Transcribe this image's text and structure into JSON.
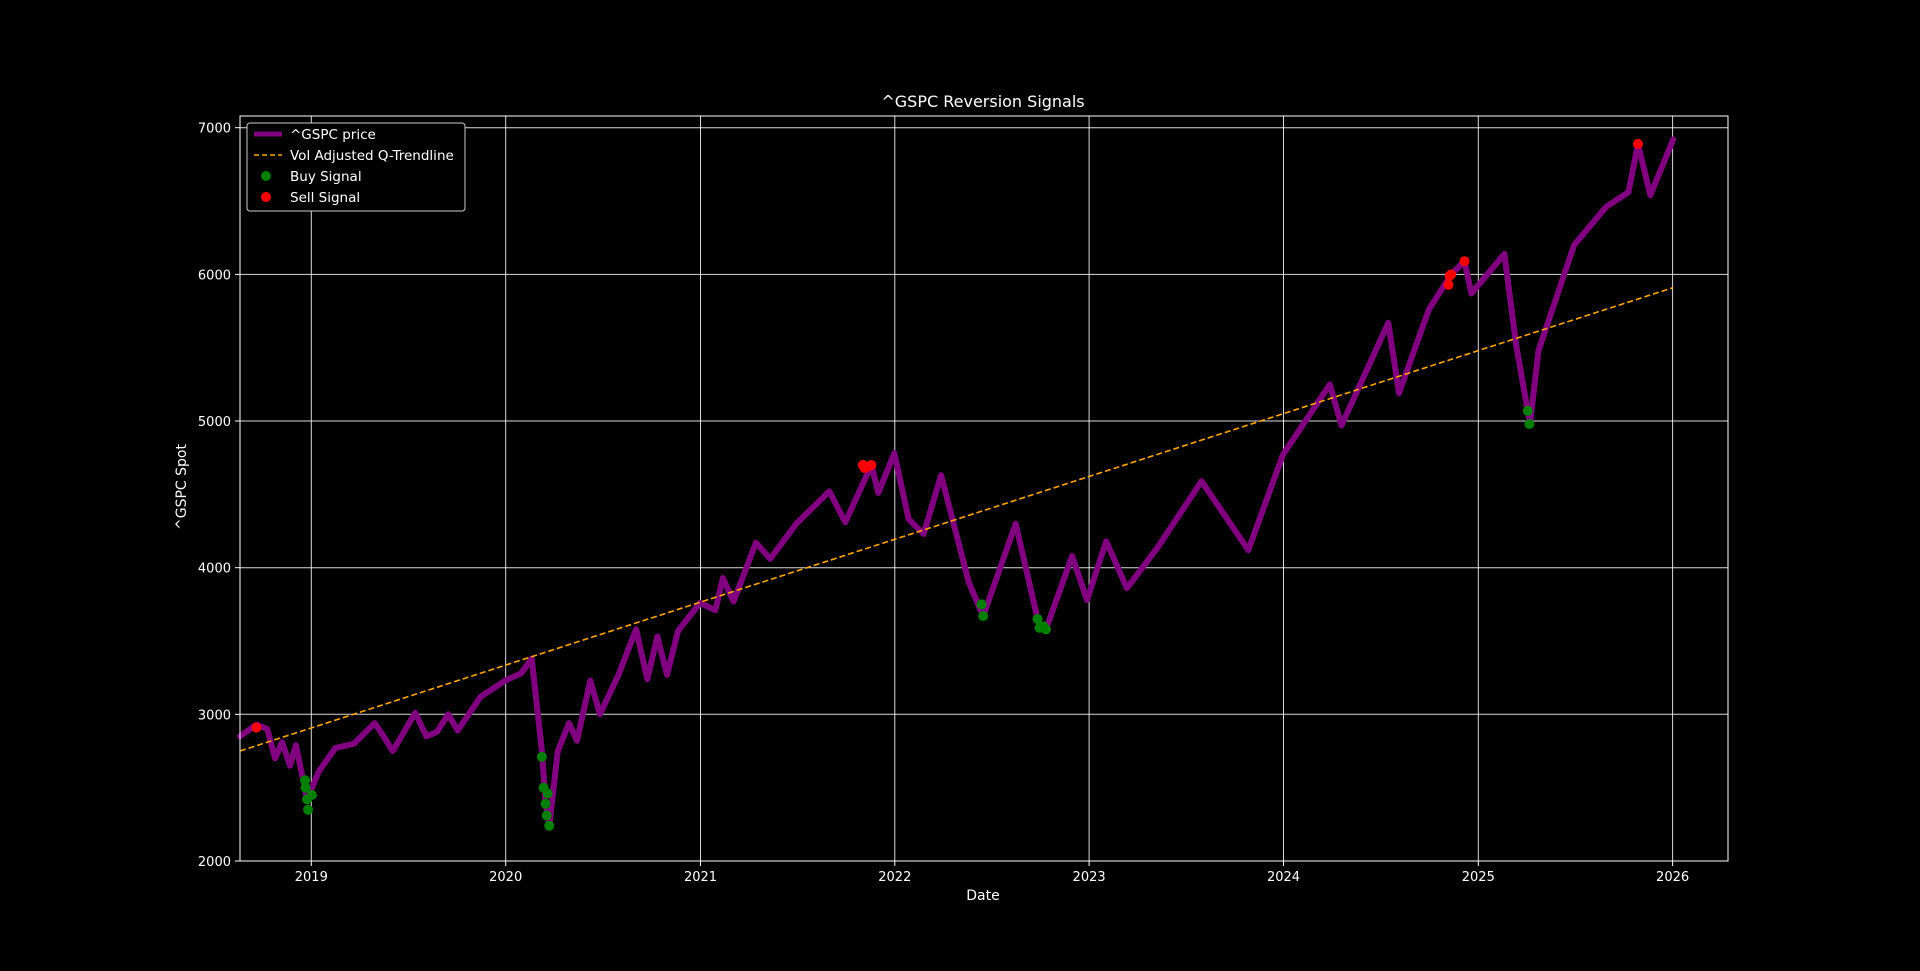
{
  "chart_data": {
    "type": "line",
    "title": "^GSPC Reversion Signals",
    "xlabel": "Date",
    "ylabel": "^GSPC Spot",
    "xlim": [
      "2018-08-20",
      "2026-04-15"
    ],
    "ylim": [
      2000,
      7080
    ],
    "x_ticks": [
      "2019-01-01",
      "2020-01-01",
      "2021-01-01",
      "2022-01-01",
      "2023-01-01",
      "2024-01-01",
      "2025-01-01",
      "2026-01-01"
    ],
    "x_tick_labels": [
      "2019",
      "2020",
      "2021",
      "2022",
      "2023",
      "2024",
      "2025",
      "2026"
    ],
    "y_ticks": [
      2000,
      3000,
      4000,
      5000,
      6000,
      7000
    ],
    "y_tick_labels": [
      "2000",
      "3000",
      "4000",
      "5000",
      "6000",
      "7000"
    ],
    "grid": true,
    "legend_position": "top-left",
    "colors": {
      "background": "#000000",
      "price": "#800080",
      "trendline": "#FFA500",
      "buy": "#008000",
      "sell": "#FF0000",
      "text": "#FFFFFF"
    },
    "series": [
      {
        "name": "^GSPC price",
        "style": "solid-thick",
        "color": "#800080",
        "points": [
          [
            "2018-08-20",
            2850
          ],
          [
            "2018-09-20",
            2930
          ],
          [
            "2018-10-10",
            2900
          ],
          [
            "2018-10-25",
            2700
          ],
          [
            "2018-11-07",
            2810
          ],
          [
            "2018-11-22",
            2650
          ],
          [
            "2018-12-03",
            2790
          ],
          [
            "2018-12-24",
            2420
          ],
          [
            "2019-01-15",
            2610
          ],
          [
            "2019-02-15",
            2770
          ],
          [
            "2019-03-22",
            2800
          ],
          [
            "2019-04-30",
            2940
          ],
          [
            "2019-05-15",
            2860
          ],
          [
            "2019-06-03",
            2750
          ],
          [
            "2019-07-15",
            3010
          ],
          [
            "2019-08-05",
            2850
          ],
          [
            "2019-08-25",
            2880
          ],
          [
            "2019-09-15",
            3000
          ],
          [
            "2019-10-03",
            2890
          ],
          [
            "2019-11-15",
            3120
          ],
          [
            "2019-12-31",
            3230
          ],
          [
            "2020-01-30",
            3280
          ],
          [
            "2020-02-19",
            3380
          ],
          [
            "2020-03-09",
            2750
          ],
          [
            "2020-03-16",
            2390
          ],
          [
            "2020-03-23",
            2240
          ],
          [
            "2020-04-08",
            2750
          ],
          [
            "2020-04-29",
            2940
          ],
          [
            "2020-05-14",
            2820
          ],
          [
            "2020-06-08",
            3230
          ],
          [
            "2020-06-26",
            3000
          ],
          [
            "2020-07-31",
            3270
          ],
          [
            "2020-09-02",
            3580
          ],
          [
            "2020-09-23",
            3240
          ],
          [
            "2020-10-12",
            3530
          ],
          [
            "2020-10-30",
            3270
          ],
          [
            "2020-11-20",
            3570
          ],
          [
            "2020-12-31",
            3760
          ],
          [
            "2021-01-29",
            3710
          ],
          [
            "2021-02-12",
            3930
          ],
          [
            "2021-03-04",
            3770
          ],
          [
            "2021-04-15",
            4170
          ],
          [
            "2021-05-12",
            4060
          ],
          [
            "2021-06-30",
            4300
          ],
          [
            "2021-08-31",
            4520
          ],
          [
            "2021-09-30",
            4310
          ],
          [
            "2021-11-18",
            4700
          ],
          [
            "2021-12-01",
            4510
          ],
          [
            "2021-12-31",
            4780
          ],
          [
            "2022-01-27",
            4330
          ],
          [
            "2022-02-24",
            4230
          ],
          [
            "2022-03-29",
            4630
          ],
          [
            "2022-05-20",
            3900
          ],
          [
            "2022-06-16",
            3670
          ],
          [
            "2022-08-16",
            4300
          ],
          [
            "2022-09-30",
            3590
          ],
          [
            "2022-10-12",
            3580
          ],
          [
            "2022-11-30",
            4080
          ],
          [
            "2022-12-28",
            3780
          ],
          [
            "2023-02-02",
            4180
          ],
          [
            "2023-03-13",
            3860
          ],
          [
            "2023-05-10",
            4140
          ],
          [
            "2023-07-31",
            4590
          ],
          [
            "2023-10-27",
            4120
          ],
          [
            "2023-12-31",
            4770
          ],
          [
            "2024-03-28",
            5250
          ],
          [
            "2024-04-19",
            4970
          ],
          [
            "2024-07-16",
            5670
          ],
          [
            "2024-08-05",
            5190
          ],
          [
            "2024-09-30",
            5760
          ],
          [
            "2024-11-11",
            6000
          ],
          [
            "2024-12-06",
            6090
          ],
          [
            "2024-12-19",
            5870
          ],
          [
            "2025-02-19",
            6140
          ],
          [
            "2025-03-13",
            5520
          ],
          [
            "2025-04-08",
            4980
          ],
          [
            "2025-04-24",
            5480
          ],
          [
            "2025-06-30",
            6200
          ],
          [
            "2025-08-29",
            6460
          ],
          [
            "2025-10-10",
            6560
          ],
          [
            "2025-10-28",
            6890
          ],
          [
            "2025-11-20",
            6540
          ],
          [
            "2026-01-02",
            6920
          ]
        ]
      },
      {
        "name": "Vol Adjusted Q-Trendline",
        "style": "dashed",
        "color": "#FFA500",
        "points": [
          [
            "2018-08-20",
            2750
          ],
          [
            "2026-01-02",
            5910
          ]
        ]
      }
    ],
    "signals": [
      {
        "name": "Buy Signal",
        "color": "#008000",
        "points": [
          [
            "2018-12-20",
            2550
          ],
          [
            "2018-12-21",
            2500
          ],
          [
            "2018-12-24",
            2420
          ],
          [
            "2018-12-26",
            2350
          ],
          [
            "2019-01-02",
            2450
          ],
          [
            "2020-03-09",
            2710
          ],
          [
            "2020-03-12",
            2500
          ],
          [
            "2020-03-16",
            2390
          ],
          [
            "2020-03-18",
            2310
          ],
          [
            "2020-03-20",
            2460
          ],
          [
            "2020-03-23",
            2240
          ],
          [
            "2022-06-13",
            3750
          ],
          [
            "2022-06-16",
            3670
          ],
          [
            "2022-09-26",
            3650
          ],
          [
            "2022-09-30",
            3590
          ],
          [
            "2022-10-07",
            3600
          ],
          [
            "2022-10-12",
            3580
          ],
          [
            "2025-04-04",
            5070
          ],
          [
            "2025-04-07",
            4980
          ]
        ]
      },
      {
        "name": "Sell Signal",
        "color": "#FF0000",
        "points": [
          [
            "2018-09-20",
            2910
          ],
          [
            "2021-11-02",
            4700
          ],
          [
            "2021-11-05",
            4680
          ],
          [
            "2021-11-12",
            4690
          ],
          [
            "2021-11-18",
            4700
          ],
          [
            "2024-11-06",
            5930
          ],
          [
            "2024-11-08",
            5990
          ],
          [
            "2024-11-11",
            6000
          ],
          [
            "2024-12-06",
            6090
          ],
          [
            "2025-10-28",
            6890
          ]
        ]
      }
    ]
  }
}
